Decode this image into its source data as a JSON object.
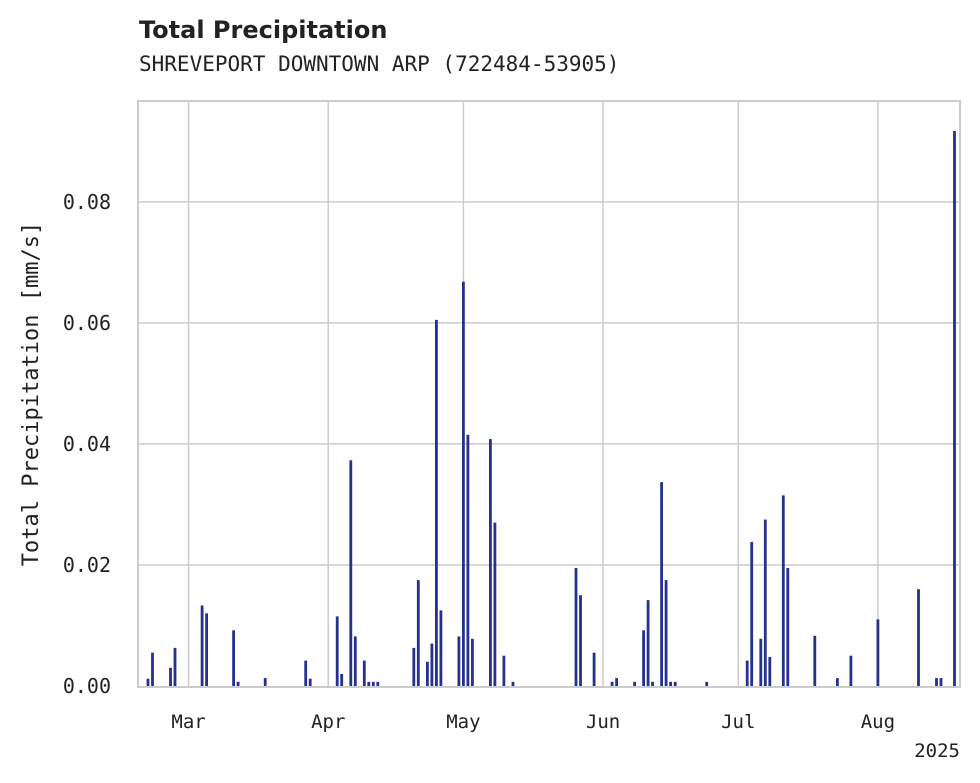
{
  "chart_data": {
    "type": "bar",
    "title": "Total Precipitation",
    "subtitle": "SHREVEPORT DOWNTOWN ARP (722484-53905)",
    "ylabel": "Total Precipitation [mm/s]",
    "xlabel": "",
    "year_label": "2025",
    "ylim": [
      0,
      0.0965
    ],
    "xlim": [
      "2025-02-18",
      "2025-08-19"
    ],
    "grid": true,
    "legend": "none",
    "bar_color": "#24318f",
    "y_ticks": [
      {
        "value": 0,
        "label": "0.00"
      },
      {
        "value": 0.02,
        "label": "0.02"
      },
      {
        "value": 0.04,
        "label": "0.04"
      },
      {
        "value": 0.06,
        "label": "0.06"
      },
      {
        "value": 0.08,
        "label": "0.08"
      }
    ],
    "x_ticks": [
      {
        "date": "2025-03-01",
        "label": "Mar"
      },
      {
        "date": "2025-04-01",
        "label": "Apr"
      },
      {
        "date": "2025-05-01",
        "label": "May"
      },
      {
        "date": "2025-06-01",
        "label": "Jun"
      },
      {
        "date": "2025-07-01",
        "label": "Jul"
      },
      {
        "date": "2025-08-01",
        "label": "Aug"
      }
    ],
    "x": [
      "2025-02-20",
      "2025-02-21",
      "2025-02-25",
      "2025-02-26",
      "2025-03-04",
      "2025-03-05",
      "2025-03-11",
      "2025-03-12",
      "2025-03-18",
      "2025-03-27",
      "2025-03-28",
      "2025-04-03",
      "2025-04-04",
      "2025-04-06",
      "2025-04-07",
      "2025-04-09",
      "2025-04-10",
      "2025-04-11",
      "2025-04-12",
      "2025-04-20",
      "2025-04-21",
      "2025-04-23",
      "2025-04-24",
      "2025-04-25",
      "2025-04-26",
      "2025-04-30",
      "2025-05-01",
      "2025-05-02",
      "2025-05-03",
      "2025-05-07",
      "2025-05-08",
      "2025-05-10",
      "2025-05-12",
      "2025-05-26",
      "2025-05-27",
      "2025-05-30",
      "2025-06-04",
      "2025-06-08",
      "2025-06-10",
      "2025-06-11",
      "2025-06-12",
      "2025-06-14",
      "2025-06-15",
      "2025-06-24",
      "2025-07-03",
      "2025-07-04",
      "2025-07-06",
      "2025-07-07",
      "2025-07-08",
      "2025-07-11",
      "2025-07-12",
      "2025-07-18",
      "2025-07-26",
      "2025-08-10",
      "2025-08-14"
    ],
    "series": [
      {
        "values": [
          0.0012,
          0.0055,
          0.003,
          0.0063,
          0.0133,
          0.012,
          0.0092,
          0.0007,
          0.0013,
          0.0042,
          0.0012,
          0.0115,
          0.002,
          0.0373,
          0.0082,
          0.0042,
          0.0007,
          0.0007,
          0.0007,
          0.0063,
          0.0175,
          0.004,
          0.007,
          0.0605,
          0.0125,
          0.0082,
          0.0668,
          0.0415,
          0.0078,
          0.0408,
          0.027,
          0.005,
          0.0007,
          0.0195,
          0.015,
          0.0055,
          0.0013,
          0.0007,
          0.0092,
          0.0142,
          0.0007,
          0.0337,
          0.0175,
          0.0007,
          0.0042,
          0.0238,
          0.0078,
          0.0275,
          0.0048,
          0.0315,
          0.0195,
          0.0083,
          0.005,
          0.016,
          0.0013
        ]
      }
    ],
    "extra_points": [
      {
        "x": "2025-07-23",
        "y": 0.0013
      },
      {
        "x": "2025-08-01",
        "y": 0.011
      },
      {
        "x": "2025-08-15",
        "y": 0.0013
      },
      {
        "x": "2025-08-18",
        "y": 0.0917
      },
      {
        "x": "2025-06-17",
        "y": 0.0007
      },
      {
        "x": "2025-06-16",
        "y": 0.0007
      },
      {
        "x": "2025-06-03",
        "y": 0.0007
      }
    ]
  }
}
